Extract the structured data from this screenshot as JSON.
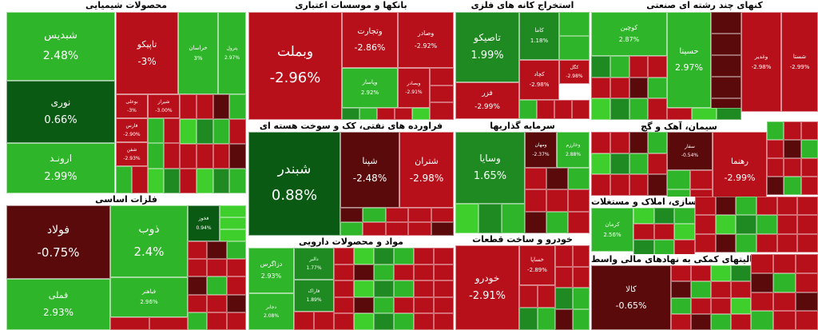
{
  "chart_data": {
    "type": "treemap",
    "title": "",
    "colors": {
      "dark_red": "#5a0a0a",
      "red": "#b8101a",
      "mid_red": "#c0131c",
      "green": "#2fb52a",
      "light_green": "#3ecf2d",
      "dark_green": "#0b5a14",
      "mid_green": "#1f8a22"
    },
    "sectors": [
      {
        "name": "محصولات شیمیایی",
        "stocks": [
          {
            "name": "شبدیس",
            "change": "2.48%"
          },
          {
            "name": "نوری",
            "change": "0.66%"
          },
          {
            "name": "ارونـد",
            "change": "2.99%"
          },
          {
            "name": "تاپیکو",
            "change": "-3%"
          },
          {
            "name": "خراسان",
            "change": "3%"
          },
          {
            "name": "پترول",
            "change": "2.97%"
          },
          {
            "name": "بوعلی",
            "change": "-3%"
          },
          {
            "name": "شیراز",
            "change": "-3.00%"
          },
          {
            "name": "فارس",
            "change": "-2.90%"
          },
          {
            "name": "شفن",
            "change": "-2.93%"
          }
        ]
      },
      {
        "name": "فلزات اساسی",
        "stocks": [
          {
            "name": "فولاد",
            "change": "-0.75%"
          },
          {
            "name": "ذوب",
            "change": "2.4%"
          },
          {
            "name": "فملی",
            "change": "2.93%"
          },
          {
            "name": "فخوز",
            "change": "0.94%"
          },
          {
            "name": "فباهنر",
            "change": "2.96%"
          }
        ]
      },
      {
        "name": "بانکها و موسسات اعتباری",
        "stocks": [
          {
            "name": "وبملت",
            "change": "-2.96%"
          },
          {
            "name": "وتجارت",
            "change": "-2.86%"
          },
          {
            "name": "وصادر",
            "change": "-2.92%"
          },
          {
            "name": "وپاسار",
            "change": "2.92%"
          },
          {
            "name": "وبصادر",
            "change": "-2.91%"
          }
        ]
      },
      {
        "name": "استخراج کانه های فلزی",
        "stocks": [
          {
            "name": "تاصیکو",
            "change": "1.99%"
          },
          {
            "name": "کاما",
            "change": "1.18%"
          },
          {
            "name": "فزر",
            "change": "-2.99%"
          },
          {
            "name": "کگل",
            "change": "-2.98%"
          },
          {
            "name": "کچاد",
            "change": "-2.98%"
          }
        ]
      },
      {
        "name": "فراورده های نفتی، کک و سوخت هسته ای",
        "stocks": [
          {
            "name": "شبندر",
            "change": "0.88%"
          },
          {
            "name": "شپنا",
            "change": "-2.48%"
          },
          {
            "name": "شتران",
            "change": "-2.98%"
          }
        ]
      },
      {
        "name": "سرمایه گذاریها",
        "stocks": [
          {
            "name": "وسایا",
            "change": "1.65%"
          },
          {
            "name": "ومهان",
            "change": "-2.37%"
          },
          {
            "name": "وخارزم",
            "change": "2.88%"
          }
        ]
      },
      {
        "name": "مواد و محصولات دارویی",
        "stocks": [
          {
            "name": "دزاگرس",
            "change": "2.93%"
          },
          {
            "name": "دالبر",
            "change": "1.77%"
          },
          {
            "name": "دجابر",
            "change": "2.08%"
          },
          {
            "name": "فاراک",
            "change": "1.89%"
          }
        ]
      },
      {
        "name": "خودرو و ساخت قطعات",
        "stocks": [
          {
            "name": "خودرو",
            "change": "-2.91%"
          },
          {
            "name": "خساپا",
            "change": "-2.89%"
          }
        ]
      },
      {
        "name": "کنهای چند رشته ای صنعتی",
        "stocks": [
          {
            "name": "حسینا",
            "change": "2.97%"
          },
          {
            "name": "کوچین",
            "change": "2.87%"
          },
          {
            "name": "وغدیر",
            "change": "-2.98%"
          },
          {
            "name": "شستا",
            "change": "-2.99%"
          }
        ]
      },
      {
        "name": "سیمان، آهک و گچ",
        "stocks": [
          {
            "name": "رهنما",
            "change": "-2.99%"
          },
          {
            "name": "سفار",
            "change": "-0.54%"
          }
        ]
      },
      {
        "name": "انبوه سازی، املاک و مستغلات",
        "stocks": [
          {
            "name": "کرمان",
            "change": "2.56%"
          }
        ]
      },
      {
        "name": "فعالیتهای کمکی به نهادهای مالی واسط",
        "stocks": [
          {
            "name": "کالا",
            "change": "-0.65%"
          }
        ]
      }
    ]
  }
}
